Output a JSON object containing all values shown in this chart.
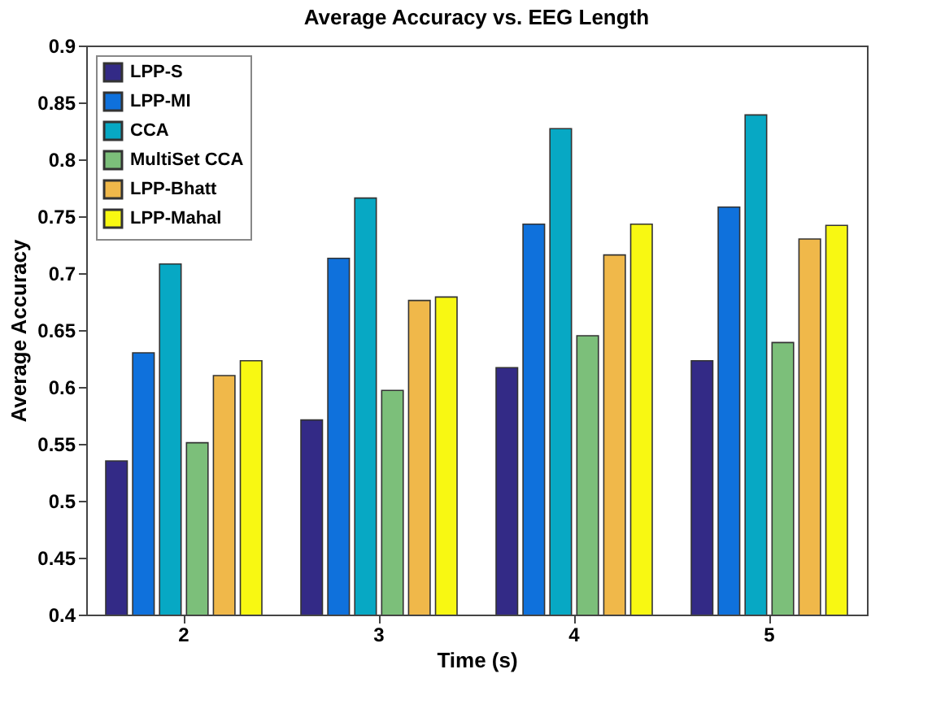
{
  "chart_data": {
    "type": "bar",
    "title": "Average Accuracy vs. EEG Length",
    "xlabel": "Time (s)",
    "ylabel": "Average Accuracy",
    "categories": [
      "2",
      "3",
      "4",
      "5"
    ],
    "series": [
      {
        "name": "LPP-S",
        "color": "#332a86",
        "values": [
          0.535,
          0.571,
          0.617,
          0.623
        ]
      },
      {
        "name": "LPP-MI",
        "color": "#0f71dc",
        "values": [
          0.63,
          0.713,
          0.743,
          0.758
        ]
      },
      {
        "name": "CCA",
        "color": "#07a8c4",
        "values": [
          0.708,
          0.766,
          0.827,
          0.839
        ]
      },
      {
        "name": "MultiSet CCA",
        "color": "#7cbf7a",
        "values": [
          0.551,
          0.597,
          0.645,
          0.639
        ]
      },
      {
        "name": "LPP-Bhatt",
        "color": "#f0b84a",
        "values": [
          0.61,
          0.676,
          0.716,
          0.73
        ]
      },
      {
        "name": "LPP-Mahal",
        "color": "#f8f812",
        "values": [
          0.623,
          0.679,
          0.743,
          0.742
        ]
      }
    ],
    "ylim": [
      0.4,
      0.9
    ],
    "yticks": [
      0.4,
      0.45,
      0.5,
      0.55,
      0.6,
      0.65,
      0.7,
      0.75,
      0.8,
      0.85,
      0.9
    ],
    "grid": false,
    "legend": "top left"
  }
}
